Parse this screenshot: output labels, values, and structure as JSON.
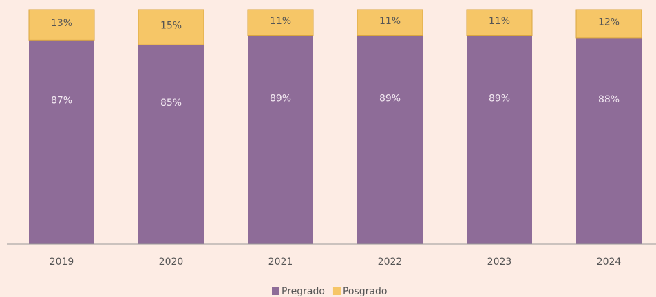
{
  "chart_data": {
    "type": "stacked_bar",
    "categories": [
      "2019",
      "2020",
      "2021",
      "2022",
      "2023",
      "2024"
    ],
    "series": [
      {
        "name": "Pregrado",
        "color": "#8e6c98",
        "values": [
          87,
          85,
          89,
          89,
          89,
          88
        ],
        "value_labels": [
          "87%",
          "85%",
          "89%",
          "89%",
          "89%",
          "88%"
        ]
      },
      {
        "name": "Posgrado",
        "color": "#f6c667",
        "values": [
          13,
          15,
          11,
          11,
          11,
          12
        ],
        "value_labels": [
          "13%",
          "15%",
          "11%",
          "11%",
          "11%",
          "12%"
        ]
      }
    ],
    "ylim": [
      0,
      100
    ]
  }
}
